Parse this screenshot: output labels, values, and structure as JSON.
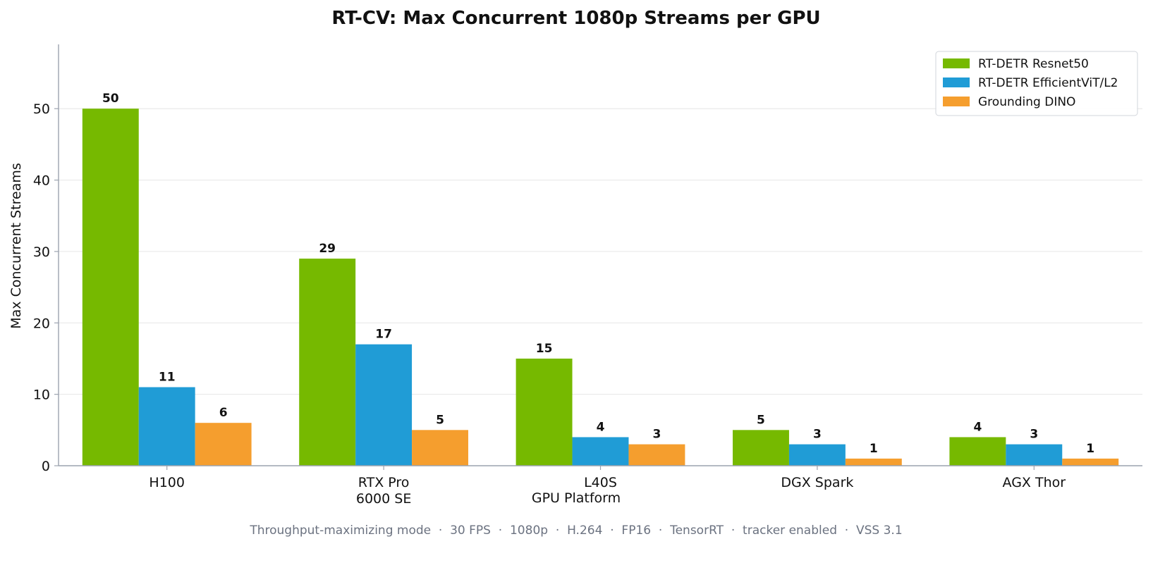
{
  "chart_data": {
    "type": "bar",
    "title": "RT-CV: Max Concurrent 1080p Streams per GPU",
    "xlabel": "GPU Platform",
    "ylabel": "Max Concurrent Streams",
    "categories": [
      [
        "H100"
      ],
      [
        "RTX Pro",
        "6000 SE"
      ],
      [
        "L40S"
      ],
      [
        "DGX Spark"
      ],
      [
        "AGX Thor"
      ]
    ],
    "series": [
      {
        "name": "RT-DETR Resnet50",
        "color": "#76b900",
        "values": [
          50,
          29,
          15,
          5,
          4
        ]
      },
      {
        "name": "RT-DETR EfficientViT/L2",
        "color": "#209cd6",
        "values": [
          11,
          17,
          4,
          3,
          3
        ]
      },
      {
        "name": "Grounding DINO",
        "color": "#f59e2e",
        "values": [
          6,
          5,
          3,
          1,
          1
        ]
      }
    ],
    "ylim": [
      0,
      59
    ],
    "yticks": [
      0,
      10,
      20,
      30,
      40,
      50
    ],
    "grid": "y",
    "legend_position": "top-right",
    "footnote": "Throughput-maximizing mode  ·  30 FPS  ·  1080p  ·  H.264  ·  FP16  ·  TensorRT  ·  tracker enabled  ·  VSS 3.1"
  }
}
